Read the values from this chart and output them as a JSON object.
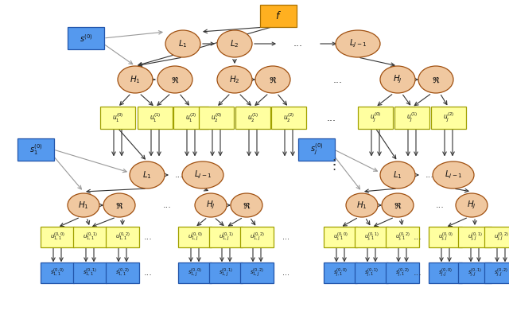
{
  "bg_color": "#ffffff",
  "cc": "#F0C8A0",
  "ce": "#A05010",
  "yf": "#FFFFA0",
  "ye": "#A0A000",
  "bf": "#5599EE",
  "be": "#2255AA",
  "of": "#FFB020",
  "oe": "#AA7000",
  "ac": "#333333",
  "gc": "#999999"
}
